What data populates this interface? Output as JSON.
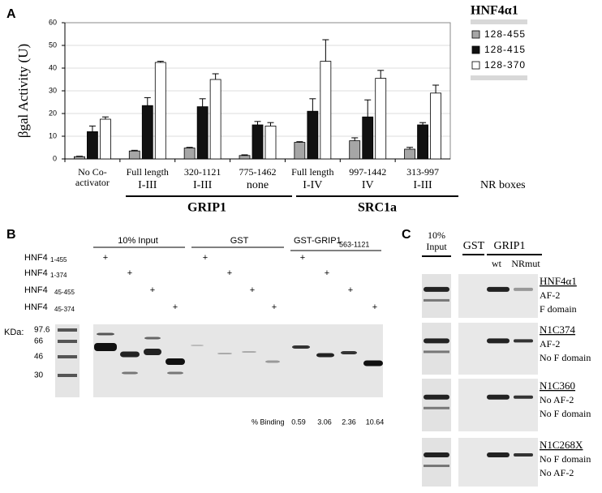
{
  "chart_data": {
    "type": "bar",
    "panel_label": "A",
    "y_label": "βgal Activity (U)",
    "categories": [
      "No Co-activator",
      "Full length",
      "320-1121",
      "775-1462",
      "Full length",
      "997-1442",
      "313-997"
    ],
    "series": [
      {
        "name": "128-455",
        "color": "#a6a6a6",
        "values": [
          1,
          3.5,
          4.8,
          1.5,
          7.3,
          8,
          4.3
        ],
        "errors": [
          0.2,
          0.3,
          0.3,
          0.3,
          0.3,
          1.3,
          0.8
        ]
      },
      {
        "name": "128-415",
        "color": "#111111",
        "values": [
          12,
          23.5,
          23,
          15,
          21,
          18.5,
          15
        ],
        "errors": [
          2.5,
          3.5,
          3.5,
          1.5,
          5.5,
          7.5,
          1
        ]
      },
      {
        "name": "128-370",
        "color": "#ffffff",
        "values": [
          17.5,
          42.5,
          35,
          14.5,
          43,
          35.5,
          29
        ],
        "errors": [
          1,
          0.5,
          2.5,
          1.5,
          9.5,
          3.5,
          3.5
        ]
      }
    ],
    "ylim": [
      0,
      60
    ],
    "yticks": [
      0,
      10,
      20,
      30,
      40,
      50,
      60
    ],
    "grid": true,
    "legend_title": "HNF4α1",
    "legend_position": "right",
    "nr_boxes": [
      null,
      "I-III",
      "I-III",
      "none",
      "I-IV",
      "IV",
      "I-III"
    ],
    "nr_boxes_label": "NR boxes",
    "groups": [
      {
        "name": "GRIP1"
      },
      {
        "name": "SRC1a"
      }
    ]
  },
  "panel_b": {
    "label": "B",
    "headers": [
      {
        "text": "10% Input"
      },
      {
        "text": "GST"
      },
      {
        "text": "GST-GRIP1",
        "sub": "563-1121"
      }
    ],
    "rows": [
      {
        "name": "HNF4",
        "sub": "1-455"
      },
      {
        "name": "HNF4",
        "sub": "1-374"
      },
      {
        "name": "HNF4",
        "sub": "45-455"
      },
      {
        "name": "HNF4",
        "sub": "45-374"
      }
    ],
    "plus": "+",
    "kda_label": "KDa:",
    "markers": [
      97.6,
      66,
      46,
      30
    ],
    "binding_label": "% Binding",
    "binding_values": [
      0.59,
      3.06,
      2.36,
      10.64
    ]
  },
  "panel_c": {
    "label": "C",
    "input": [
      "10%",
      "Input"
    ],
    "gst": "GST",
    "grip1": "GRIP1",
    "wt": "wt",
    "nrmut": "NRmut",
    "blocks": [
      {
        "name": "HNF4α1",
        "lines": [
          "AF-2",
          "F domain"
        ]
      },
      {
        "name": "N1C374",
        "lines": [
          "AF-2",
          "No F domain"
        ]
      },
      {
        "name": "N1C360",
        "lines": [
          "No AF-2",
          "No F domain"
        ]
      },
      {
        "name": "N1C268X",
        "lines": [
          "No F domain",
          "No AF-2"
        ]
      }
    ]
  }
}
